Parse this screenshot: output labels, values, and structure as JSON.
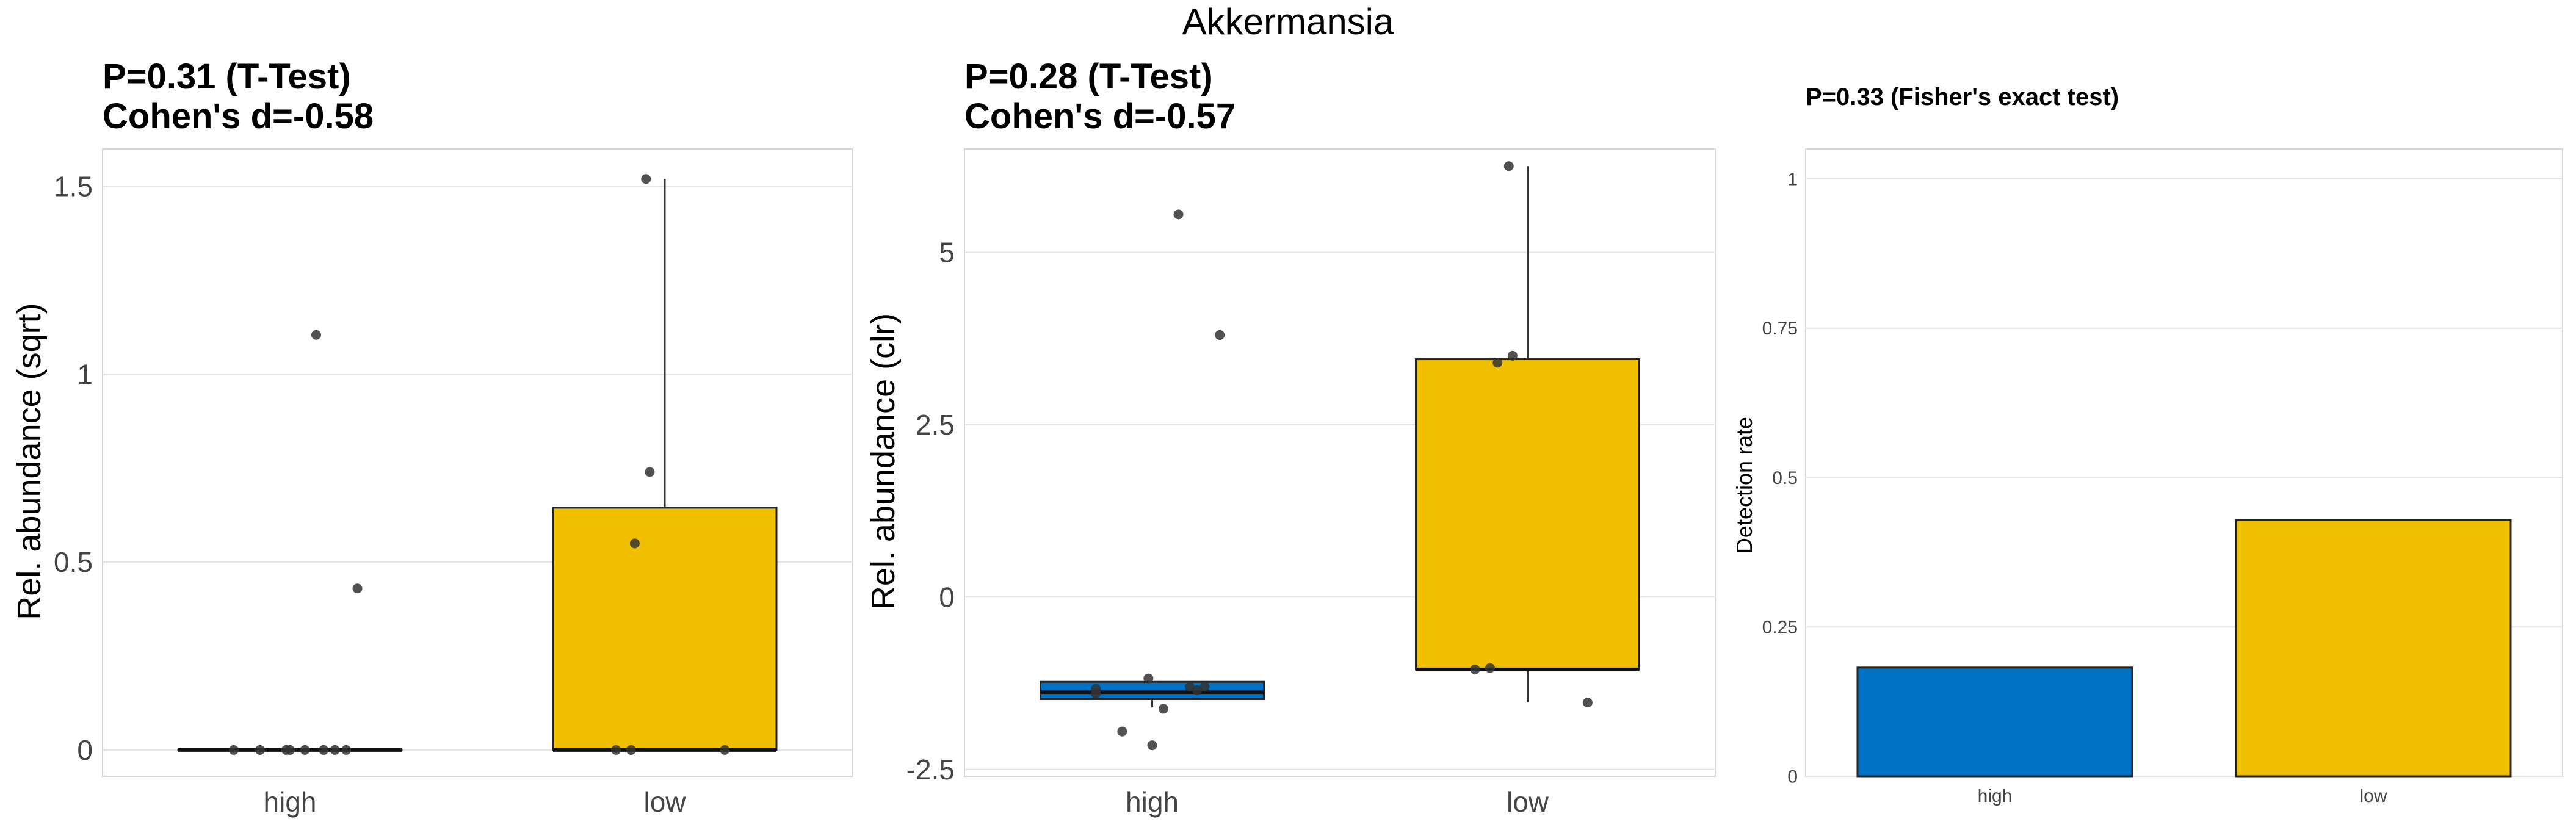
{
  "title": "Akkermansia",
  "colors": {
    "high": "#0072C6",
    "low": "#F0C000",
    "grid": "#E3E3E3",
    "frame": "#D6D6D6",
    "point": "#333333",
    "text": "#000000",
    "tick": "#444444"
  },
  "chart_data": [
    {
      "type": "box",
      "title_lines": [
        "P=0.31 (T-Test)",
        "Cohen's d=-0.58"
      ],
      "xlabel": "",
      "ylabel": "Rel. abundance (sqrt)",
      "categories": [
        "high",
        "low"
      ],
      "ylim": [
        -0.07,
        1.6
      ],
      "yticks": [
        0,
        0.5,
        1,
        1.5
      ],
      "ytick_labels": [
        "0",
        "0.5",
        "1",
        "1.5"
      ],
      "grid": true,
      "boxes": [
        {
          "category": "high",
          "min": 0,
          "q1": 0,
          "median": 0,
          "q3": 0,
          "max": 0
        },
        {
          "category": "low",
          "min": 0,
          "q1": 0,
          "median": 0,
          "q3": 0.645,
          "max": 1.52
        }
      ],
      "points": [
        {
          "category": "high",
          "x_offset": 0.07,
          "y": 1.105
        },
        {
          "category": "high",
          "x_offset": 0.18,
          "y": 0.43
        },
        {
          "category": "high",
          "x_offset": -0.15,
          "y": 0
        },
        {
          "category": "high",
          "x_offset": -0.08,
          "y": 0
        },
        {
          "category": "high",
          "x_offset": -0.01,
          "y": 0
        },
        {
          "category": "high",
          "x_offset": 0.0,
          "y": 0
        },
        {
          "category": "high",
          "x_offset": 0.04,
          "y": 0
        },
        {
          "category": "high",
          "x_offset": 0.09,
          "y": 0
        },
        {
          "category": "high",
          "x_offset": 0.12,
          "y": 0
        },
        {
          "category": "high",
          "x_offset": 0.15,
          "y": 0
        },
        {
          "category": "low",
          "x_offset": -0.05,
          "y": 1.52
        },
        {
          "category": "low",
          "x_offset": -0.04,
          "y": 0.74
        },
        {
          "category": "low",
          "x_offset": -0.08,
          "y": 0.55
        },
        {
          "category": "low",
          "x_offset": -0.13,
          "y": 0
        },
        {
          "category": "low",
          "x_offset": -0.09,
          "y": 0
        },
        {
          "category": "low",
          "x_offset": 0.16,
          "y": 0
        }
      ]
    },
    {
      "type": "box",
      "title_lines": [
        "P=0.28 (T-Test)",
        "Cohen's d=-0.57"
      ],
      "xlabel": "",
      "ylabel": "Rel. abundance (clr)",
      "categories": [
        "high",
        "low"
      ],
      "ylim": [
        -2.6,
        6.5
      ],
      "yticks": [
        -2.5,
        0,
        2.5,
        5
      ],
      "ytick_labels": [
        "-2.5",
        "0",
        "2.5",
        "5"
      ],
      "grid": true,
      "boxes": [
        {
          "category": "high",
          "min": -1.6,
          "q1": -1.48,
          "median": -1.38,
          "q3": -1.23,
          "max": -1.23
        },
        {
          "category": "low",
          "min": -1.53,
          "q1": -1.05,
          "median": -1.05,
          "q3": 3.45,
          "max": 6.25
        }
      ],
      "points": [
        {
          "category": "high",
          "x_offset": 0.07,
          "y": 5.55
        },
        {
          "category": "high",
          "x_offset": 0.18,
          "y": 3.8
        },
        {
          "category": "high",
          "x_offset": -0.15,
          "y": -1.33
        },
        {
          "category": "high",
          "x_offset": -0.15,
          "y": -1.4
        },
        {
          "category": "high",
          "x_offset": -0.01,
          "y": -1.18
        },
        {
          "category": "high",
          "x_offset": 0.1,
          "y": -1.3
        },
        {
          "category": "high",
          "x_offset": 0.12,
          "y": -1.35
        },
        {
          "category": "high",
          "x_offset": 0.14,
          "y": -1.3
        },
        {
          "category": "high",
          "x_offset": 0.03,
          "y": -1.62
        },
        {
          "category": "high",
          "x_offset": -0.08,
          "y": -1.95
        },
        {
          "category": "high",
          "x_offset": -0.0,
          "y": -2.15
        },
        {
          "category": "low",
          "x_offset": -0.05,
          "y": 6.25
        },
        {
          "category": "low",
          "x_offset": -0.04,
          "y": 3.5
        },
        {
          "category": "low",
          "x_offset": -0.08,
          "y": 3.4
        },
        {
          "category": "low",
          "x_offset": -0.14,
          "y": -1.05
        },
        {
          "category": "low",
          "x_offset": -0.1,
          "y": -1.03
        },
        {
          "category": "low",
          "x_offset": 0.16,
          "y": -1.53
        }
      ]
    },
    {
      "type": "bar",
      "title_lines": [
        "P=0.33 (Fisher's exact test)"
      ],
      "xlabel": "",
      "ylabel": "Detection rate",
      "categories": [
        "high",
        "low"
      ],
      "values": [
        0.182,
        0.429
      ],
      "ylim": [
        0,
        1.05
      ],
      "yticks": [
        0,
        0.25,
        0.5,
        0.75,
        1
      ],
      "ytick_labels": [
        "0",
        "0.25",
        "0.5",
        "0.75",
        "1"
      ],
      "grid": true
    }
  ]
}
